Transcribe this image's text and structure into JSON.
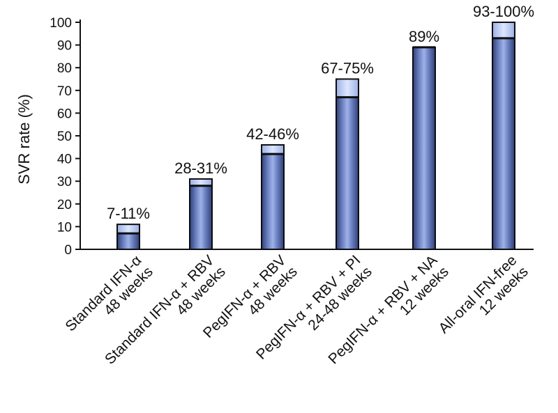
{
  "chart_data": {
    "type": "bar",
    "title": "",
    "xlabel": "",
    "ylabel": "SVR rate (%)",
    "ylim": [
      0,
      100
    ],
    "yticks": [
      0,
      10,
      20,
      30,
      40,
      50,
      60,
      70,
      80,
      90,
      100
    ],
    "grid": false,
    "categories": [
      [
        "Standard IFN-α",
        "48 weeks"
      ],
      [
        "Standard IFN-α + RBV",
        "48 weeks"
      ],
      [
        "PegIFN-α + RBV",
        "48 weeks"
      ],
      [
        "PegIFN-α + RBV + PI",
        "24-48 weeks"
      ],
      [
        "PegIFN-α + RBV + NA",
        "12 weeks"
      ],
      [
        "All-oral IFN-free",
        "12 weeks"
      ]
    ],
    "series": [
      {
        "name": "SVR rate low",
        "values": [
          7,
          28,
          42,
          67,
          89,
          93
        ]
      },
      {
        "name": "SVR rate high",
        "values": [
          11,
          31,
          46,
          75,
          89,
          100
        ]
      }
    ],
    "data_labels": [
      "7-11%",
      "28-31%",
      "42-46%",
      "67-75%",
      "89%",
      "93-100%"
    ],
    "colors": {
      "bar_dark": "#3d4f8e",
      "bar_mid": "#8da1d8",
      "bar_light": "#c9d8f8",
      "outline": "#0d0d0d",
      "axis": "#111111"
    }
  }
}
